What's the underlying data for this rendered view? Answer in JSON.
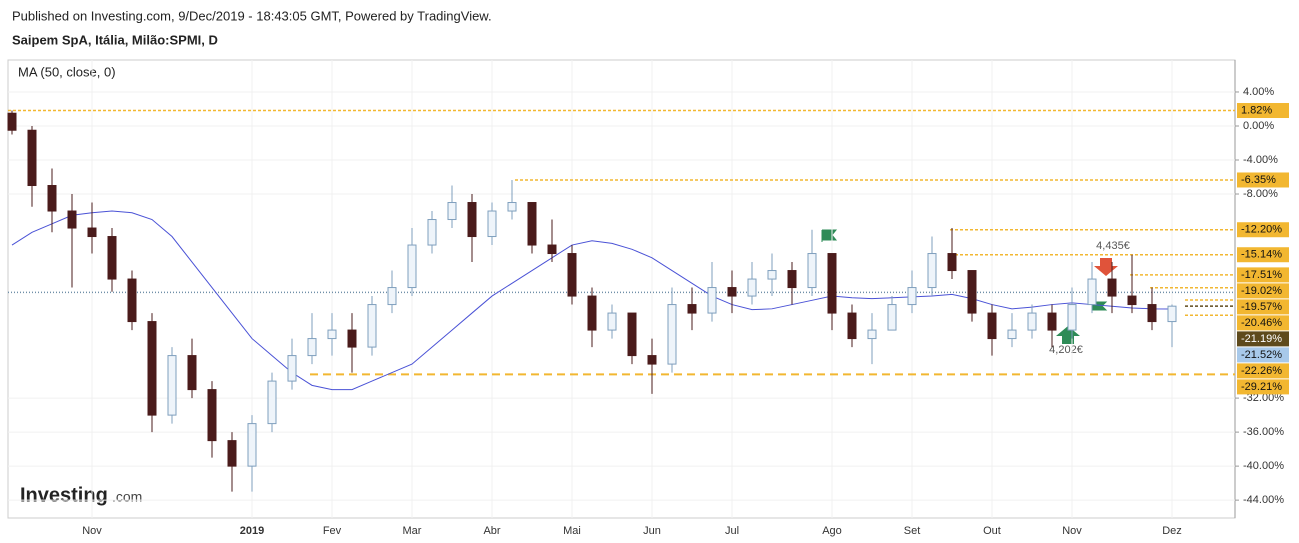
{
  "chart_data": {
    "type": "candlestick",
    "header": "Published on Investing.com, 9/Dec/2019 - 18:43:05 GMT, Powered by TradingView.",
    "title": "Saipem SpA, Itália, Milão:SPMI, D",
    "indicator_label": "MA (50, close, 0)",
    "brand": "Investing",
    "brand_suffix": ".com",
    "categories": [
      null,
      null,
      null,
      null,
      "Nov",
      null,
      null,
      null,
      null,
      null,
      null,
      null,
      "2019",
      null,
      null,
      null,
      "Fev",
      null,
      null,
      null,
      "Mar",
      null,
      null,
      null,
      "Abr",
      null,
      null,
      null,
      "Mai",
      null,
      null,
      null,
      "Jun",
      null,
      null,
      null,
      "Jul",
      null,
      null,
      null,
      null,
      "Ago",
      null,
      null,
      null,
      "Set",
      null,
      null,
      null,
      "Out",
      null,
      null,
      null,
      "Nov",
      null,
      null,
      null,
      null,
      "Dez"
    ],
    "open": [
      1.5,
      -0.5,
      -7,
      -10,
      -12,
      -13,
      -18,
      -23,
      -34,
      -27,
      -31,
      -37,
      -40,
      -35,
      -30,
      -27,
      -25,
      -24,
      -26,
      -21,
      -19,
      -14,
      -11,
      -9,
      -13,
      -10,
      -9,
      -14,
      -15,
      -20,
      -24,
      -22,
      -27,
      -28,
      -21,
      -22,
      -19,
      -20,
      -18,
      -17,
      -19,
      -15,
      -22,
      -25,
      -24,
      -21,
      -19,
      -15,
      -17,
      -22,
      -25,
      -24,
      -22,
      -24,
      -21,
      -18,
      -20,
      -21,
      -23
    ],
    "high": [
      1.82,
      0,
      -5,
      -8,
      -9,
      -12,
      -17,
      -22,
      -26,
      -25,
      -30,
      -36,
      -34,
      -29,
      -25,
      -22,
      -22,
      -22,
      -20,
      -17,
      -12,
      -10,
      -7,
      -8,
      -9,
      -6.35,
      -9,
      -11,
      -14,
      -19,
      -21,
      -22,
      -25,
      -19,
      -19,
      -16,
      -17,
      -16,
      -15,
      -16,
      -12.2,
      -15,
      -21,
      -22,
      -20,
      -17,
      -13,
      -12,
      -17,
      -21,
      -22,
      -21,
      -21,
      -19,
      -16,
      -16,
      -15.14,
      -19,
      -21
    ],
    "low": [
      -1,
      -9.5,
      -12.5,
      -19,
      -15,
      -19.5,
      -24,
      -36,
      -35,
      -32,
      -39,
      -43,
      -43,
      -36,
      -31,
      -28,
      -27,
      -29,
      -27,
      -22,
      -20,
      -15,
      -12,
      -16,
      -14,
      -11,
      -15,
      -16,
      -21,
      -26,
      -25,
      -28,
      -31.5,
      -29,
      -24,
      -23,
      -22,
      -21,
      -20,
      -21,
      -20,
      -24,
      -26,
      -28,
      -24,
      -22,
      -20,
      -18,
      -23,
      -27,
      -26,
      -25,
      -26,
      -25,
      -22,
      -22,
      -22,
      -24,
      -26
    ],
    "close": [
      -0.5,
      -7,
      -10,
      -12,
      -13,
      -18,
      -23,
      -34,
      -27,
      -31,
      -37,
      -40,
      -35,
      -30,
      -27,
      -25,
      -24,
      -26,
      -21,
      -19,
      -14,
      -11,
      -9,
      -13,
      -10,
      -9,
      -14,
      -15,
      -20,
      -24,
      -22,
      -27,
      -28,
      -21,
      -22,
      -19,
      -20,
      -18,
      -17,
      -19,
      -15,
      -22,
      -25,
      -24,
      -21,
      -19,
      -15,
      -17,
      -22,
      -25,
      -24,
      -22,
      -24,
      -21,
      -18,
      -20,
      -21,
      -23,
      -21.19
    ],
    "up_color": "#eef4fa",
    "up_border": "#7f9fbd",
    "down_color": "#4a1b1b",
    "ma": {
      "color": "#4a52d6",
      "values": [
        -14,
        -12.5,
        -11.5,
        -10.5,
        -10.2,
        -10,
        -10.2,
        -11,
        -13,
        -16,
        -19,
        -22,
        -25,
        -27,
        -29,
        -30.5,
        -31,
        -31,
        -30,
        -29,
        -28,
        -26,
        -24,
        -22,
        -20,
        -18.5,
        -17,
        -15.5,
        -14,
        -13.5,
        -13.8,
        -14.5,
        -15.5,
        -17,
        -18.5,
        -20,
        -21,
        -21.6,
        -21.5,
        -21,
        -20.5,
        -20,
        -20.2,
        -20.3,
        -20.2,
        -20.1,
        -20,
        -19.8,
        -20.3,
        -21,
        -21.5,
        -21.3,
        -21,
        -20.8,
        -21,
        -21.2,
        -21.4,
        -21.5,
        -21.52
      ]
    },
    "ylim": [
      -46.1,
      7.76
    ],
    "yticks": [
      {
        "value": 4,
        "label": "4.00%"
      },
      {
        "value": 0,
        "label": "0.00%"
      },
      {
        "value": -4,
        "label": "-4.00%"
      },
      {
        "value": -8,
        "label": "-8.00%"
      },
      {
        "value": -32,
        "label": "-32.00%"
      },
      {
        "value": -36,
        "label": "-36.00%"
      },
      {
        "value": -40,
        "label": "-40.00%"
      },
      {
        "value": -44,
        "label": "-44.00%"
      }
    ],
    "grid": true,
    "levels": [
      {
        "value": 1.82,
        "label": "1.82%",
        "color": "#f2b731"
      },
      {
        "value": -6.35,
        "label": "-6.35%",
        "color": "#f2b731"
      },
      {
        "value": -12.2,
        "label": "-12.20%",
        "color": "#f2b731"
      },
      {
        "value": -15.14,
        "label": "-15.14%",
        "color": "#f2b731"
      },
      {
        "value": -17.51,
        "label": "-17.51%",
        "color": "#f2b731"
      },
      {
        "value": -19.02,
        "label": "-19.02%",
        "color": "#f2b731"
      },
      {
        "value": -19.57,
        "label": "-19.57%",
        "color": "#f2b731"
      },
      {
        "value": -20.46,
        "label": "-20.46%",
        "color": "#f2b731"
      },
      {
        "value": -21.19,
        "label": "-21.19%",
        "color": "#5e4a1c"
      },
      {
        "value": -21.52,
        "label": "-21.52%",
        "color": "#a8c9ea"
      },
      {
        "value": -22.26,
        "label": "-22.26%",
        "color": "#f2b731"
      },
      {
        "value": -29.21,
        "label": "-29.21%",
        "color": "#f2b731"
      }
    ],
    "annotations": [
      "4,435€",
      "4,202€"
    ]
  }
}
